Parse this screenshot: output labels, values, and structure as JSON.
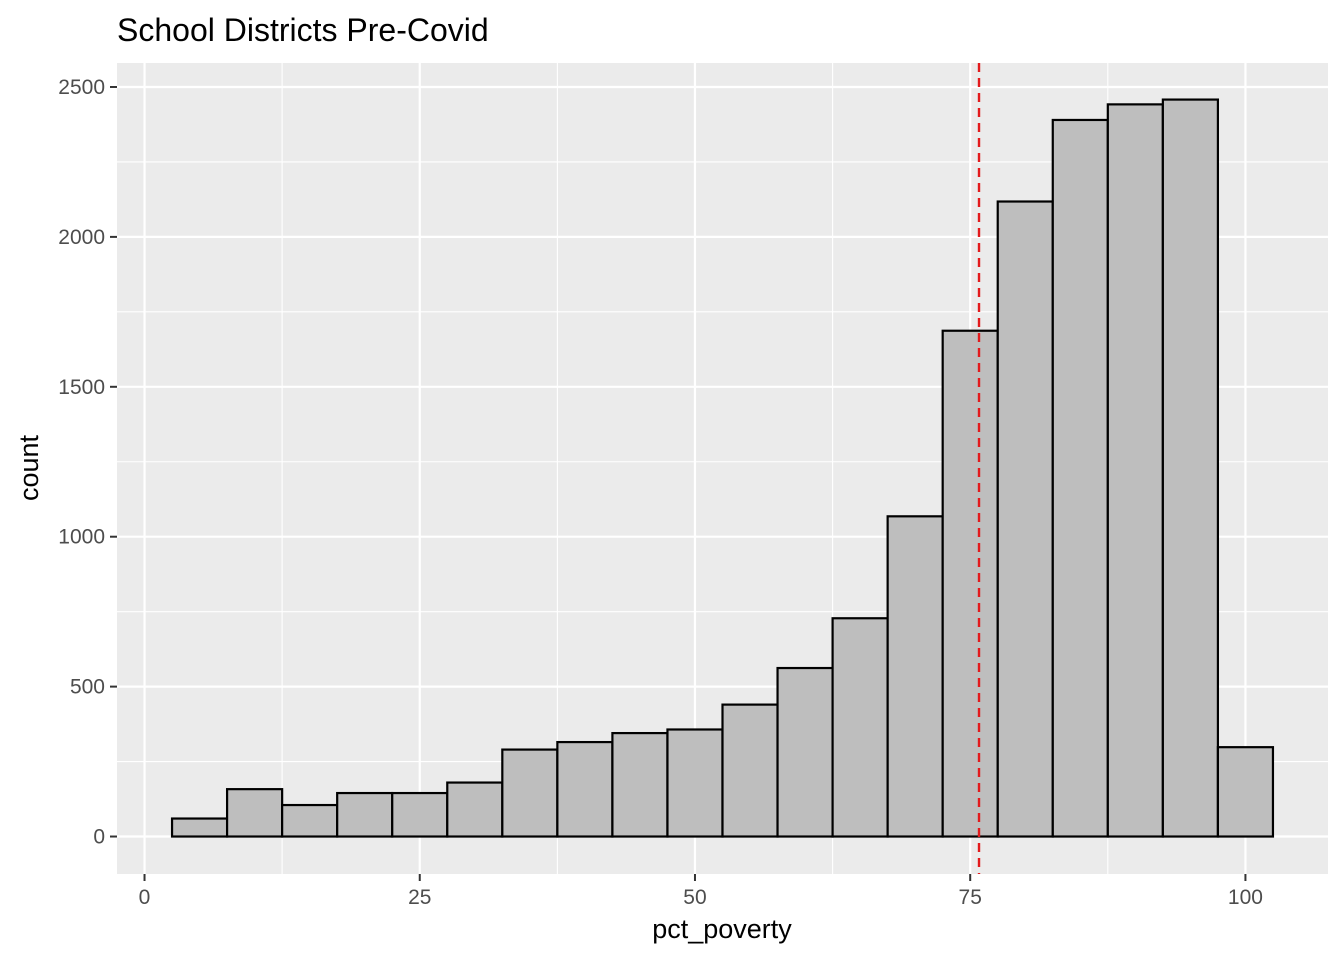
{
  "chart_data": {
    "type": "bar",
    "title": "School Districts Pre-Covid",
    "xlabel": "pct_poverty",
    "ylabel": "count",
    "xlim": [
      -2.5,
      107.5
    ],
    "ylim": [
      -125,
      2580
    ],
    "x_ticks": [
      0,
      25,
      50,
      75,
      100
    ],
    "x_tick_labels": [
      "0",
      "25",
      "50",
      "75",
      "100"
    ],
    "y_ticks": [
      0,
      500,
      1000,
      1500,
      2000,
      2500
    ],
    "y_tick_labels": [
      "0",
      "500",
      "1000",
      "1500",
      "2000",
      "2500"
    ],
    "bin_width": 5,
    "bins": [
      {
        "x": 5,
        "count": 60
      },
      {
        "x": 10,
        "count": 158
      },
      {
        "x": 15,
        "count": 105
      },
      {
        "x": 20,
        "count": 145
      },
      {
        "x": 25,
        "count": 145
      },
      {
        "x": 30,
        "count": 180
      },
      {
        "x": 35,
        "count": 290
      },
      {
        "x": 40,
        "count": 315
      },
      {
        "x": 45,
        "count": 345
      },
      {
        "x": 50,
        "count": 357
      },
      {
        "x": 55,
        "count": 440
      },
      {
        "x": 60,
        "count": 562
      },
      {
        "x": 65,
        "count": 728
      },
      {
        "x": 70,
        "count": 1068
      },
      {
        "x": 75,
        "count": 1687
      },
      {
        "x": 80,
        "count": 2118
      },
      {
        "x": 85,
        "count": 2390
      },
      {
        "x": 90,
        "count": 2442
      },
      {
        "x": 95,
        "count": 2458
      },
      {
        "x": 100,
        "count": 298
      }
    ],
    "reference_line": {
      "x": 75.8,
      "style": "dashed",
      "color": "#e31a1c"
    },
    "grid": true,
    "legend": "none"
  },
  "colors": {
    "panel": "#ebebeb",
    "grid": "#ffffff",
    "bar_fill": "#bebebe",
    "bar_stroke": "#000000"
  }
}
